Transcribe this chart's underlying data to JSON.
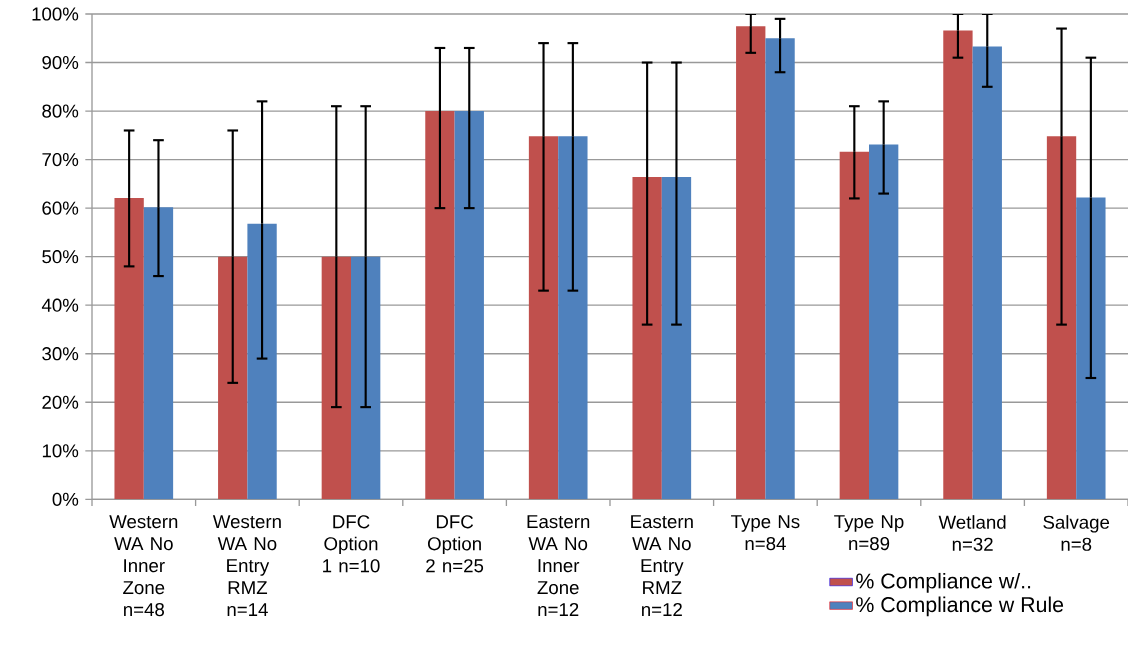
{
  "chart_data": {
    "type": "bar",
    "categories": [
      "Western WA No Inner Zone n=48",
      "Western WA No Entry RMZ n=14",
      "DFC Option 1 n=10",
      "DFC Option 2 n=25",
      "Eastern WA No Inner Zone n=12",
      "Eastern WA No Entry RMZ n=12",
      "Type Ns n=84",
      "Type Np n=89",
      "Wetland n=32",
      "Salvage n=8"
    ],
    "series": [
      {
        "name": "% Compliance w/..",
        "color": "#c0504d",
        "values": [
          62.1,
          50,
          50,
          80,
          74.8,
          66.4,
          97.5,
          71.6,
          96.6,
          74.8
        ],
        "errors": [
          [
            48,
            76
          ],
          [
            24,
            76
          ],
          [
            19,
            81
          ],
          [
            60,
            93
          ],
          [
            43,
            94
          ],
          [
            36,
            90
          ],
          [
            92,
            100
          ],
          [
            62,
            81
          ],
          [
            91,
            100
          ],
          [
            36,
            97
          ]
        ]
      },
      {
        "name": "% Compliance w Rule",
        "color": "#4f81bd",
        "values": [
          60.2,
          56.8,
          50,
          80,
          74.8,
          66.4,
          95,
          73.1,
          93.3,
          62.2
        ],
        "errors": [
          [
            46,
            74
          ],
          [
            29,
            82
          ],
          [
            19,
            81
          ],
          [
            60,
            93
          ],
          [
            43,
            94
          ],
          [
            36,
            90
          ],
          [
            88,
            99
          ],
          [
            63,
            82
          ],
          [
            85,
            100
          ],
          [
            25,
            91
          ]
        ]
      }
    ],
    "ylim": [
      0,
      100
    ],
    "yticks": [
      {
        "value": 0,
        "label": "0%"
      },
      {
        "value": 10,
        "label": "10%"
      },
      {
        "value": 20,
        "label": "20%"
      },
      {
        "value": 30,
        "label": "30%"
      },
      {
        "value": 40,
        "label": "40%"
      },
      {
        "value": 50,
        "label": "50%"
      },
      {
        "value": 60,
        "label": "60%"
      },
      {
        "value": 70,
        "label": "70%"
      },
      {
        "value": 80,
        "label": "80%"
      },
      {
        "value": 90,
        "label": "90%"
      },
      {
        "value": 100,
        "label": "100%"
      }
    ],
    "grid": "y",
    "legend": "bottom right"
  }
}
